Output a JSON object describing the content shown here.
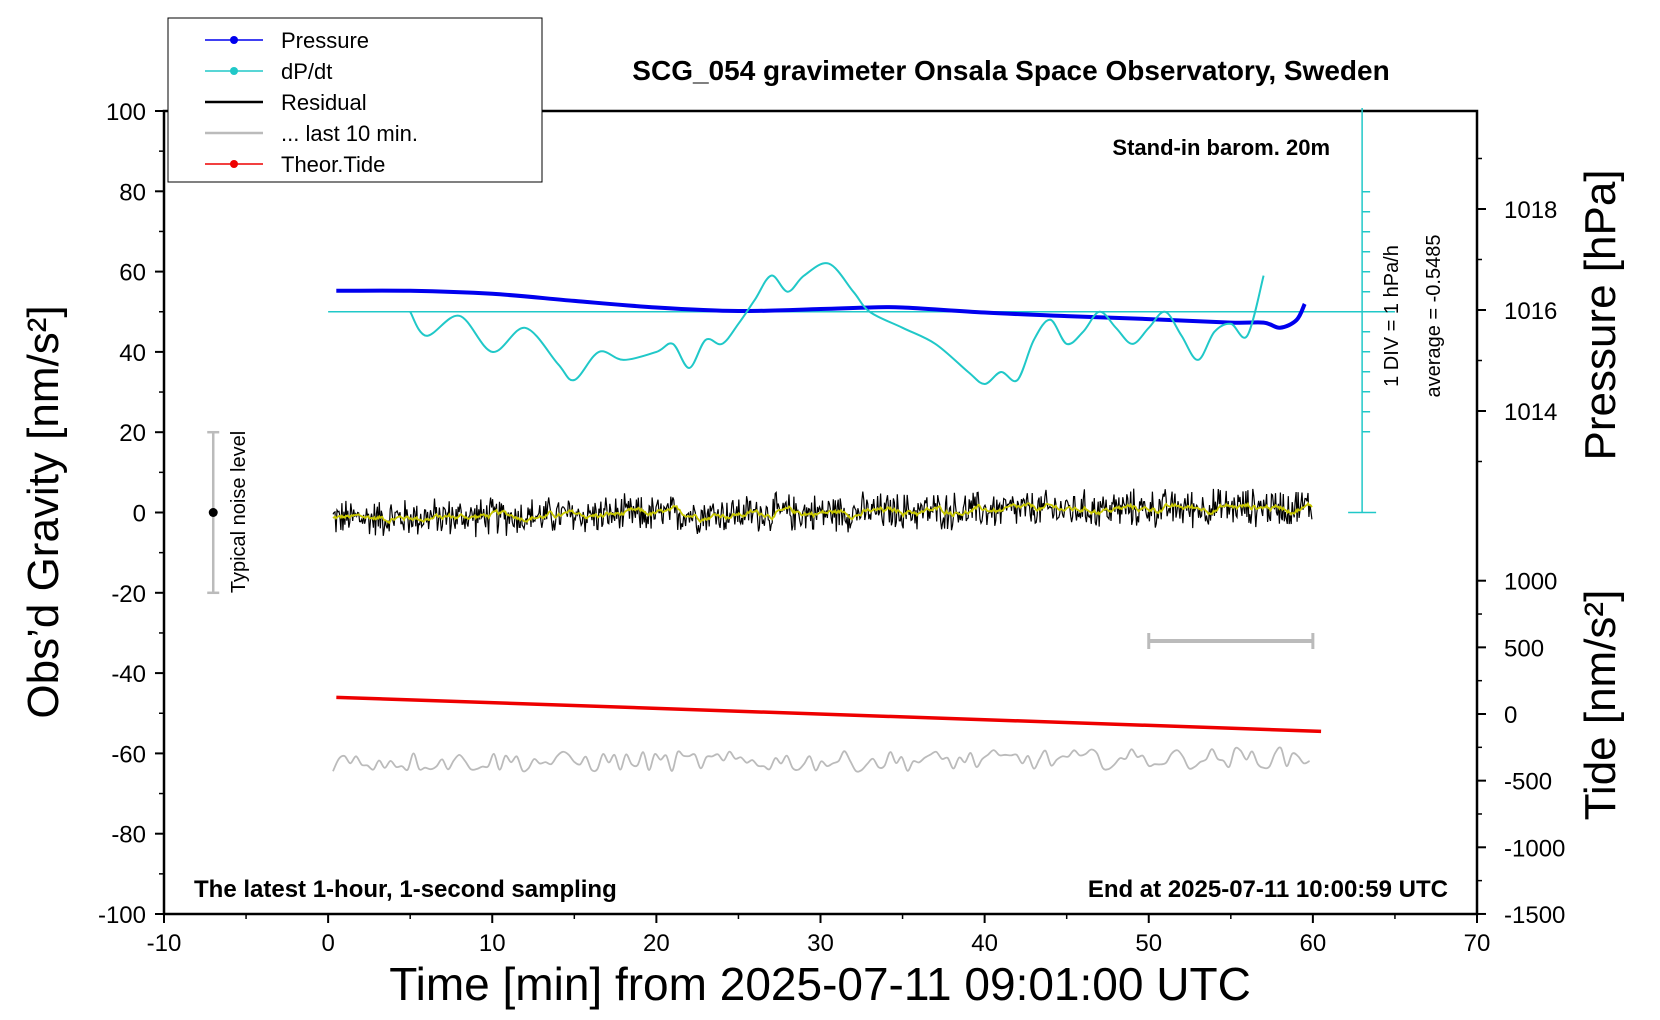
{
  "chart_data": {
    "type": "line",
    "title": "SCG_054 gravimeter Onsala Space Observatory, Sweden",
    "xlabel": "Time [min] from 2025-07-11 09:01:00 UTC",
    "ylabel_left": "Obs’d Gravity [nm/s²]",
    "ylabel_right_pressure": "Pressure [hPa]",
    "ylabel_right_tide": "Tide [nm/s²]",
    "xlim": [
      -10,
      70
    ],
    "ylim_left": [
      -100,
      100
    ],
    "xticks": [
      -10,
      0,
      10,
      20,
      30,
      40,
      50,
      60,
      70
    ],
    "xtick_labels": [
      "-10",
      "0",
      "10",
      "20",
      "30",
      "40",
      "50",
      "60",
      "70"
    ],
    "yticks_left": [
      100,
      80,
      60,
      40,
      20,
      0,
      -20,
      -40,
      -60,
      -80,
      -100
    ],
    "yticks_left_labels": [
      "100",
      "80",
      "60",
      "40",
      "20",
      "0",
      "-20",
      "-40",
      "-60",
      "-80",
      "-100"
    ],
    "pressure_ticks": [
      1018,
      1016,
      1014
    ],
    "pressure_tick_labels": [
      "1018",
      "1016",
      "1014"
    ],
    "tide_ticks": [
      1000,
      500,
      0,
      -500,
      -1000,
      -1500
    ],
    "tide_tick_labels": [
      "1000",
      "500",
      "0",
      "-500",
      "-1000",
      "-1500"
    ],
    "grid": false,
    "legend_position": "top-left",
    "legend": [
      {
        "label": "Pressure",
        "color": "#0000ee",
        "marker": true
      },
      {
        "label": "dP/dt",
        "color": "#20c8c8",
        "marker": true
      },
      {
        "label": "Residual",
        "color": "#000000",
        "marker": false
      },
      {
        "label": "... last 10 min.",
        "color": "#bbbbbb",
        "marker": false
      },
      {
        "label": "Theor.Tide",
        "color": "#ee0000",
        "marker": true
      }
    ],
    "annotations": {
      "barometer": "Stand-in barom. 20m",
      "div_scale": "1 DIV = 1 hPa/h",
      "average": "average = -0.5485",
      "noise": "Typical noise level",
      "latest": "The latest 1-hour, 1-second sampling",
      "end_time": "End at 2025-07-11 10:00:59 UTC"
    },
    "series": [
      {
        "name": "Pressure",
        "unit": "hPa",
        "color": "#0000ee",
        "x": [
          0.5,
          5,
          10,
          15,
          20,
          25,
          30,
          33,
          35,
          40,
          45,
          50,
          55,
          57,
          58,
          59,
          59.5
        ],
        "values": [
          1016.38,
          1016.38,
          1016.32,
          1016.18,
          1016.05,
          1015.98,
          1016.02,
          1016.05,
          1016.05,
          1015.95,
          1015.88,
          1015.82,
          1015.75,
          1015.75,
          1015.65,
          1015.8,
          1016.12
        ]
      },
      {
        "name": "dP/dt",
        "unit": "gravity-axis scale",
        "color": "#20c8c8",
        "x": [
          5,
          6,
          8,
          10,
          12,
          14,
          15,
          16.5,
          18,
          20,
          21,
          22,
          23,
          24,
          25,
          26,
          27,
          28,
          29,
          30.5,
          32,
          33,
          35,
          37,
          39,
          40,
          41,
          42,
          43,
          44,
          45,
          46,
          47,
          48,
          49,
          50,
          51,
          52,
          53,
          54,
          55,
          56,
          57
        ],
        "values": [
          50,
          44,
          49,
          40,
          46,
          37,
          33,
          40,
          38,
          40,
          42,
          36,
          43,
          42,
          47,
          53,
          59,
          55,
          59,
          62,
          55,
          50,
          46,
          42,
          35,
          32,
          35,
          33,
          43,
          48,
          42,
          45,
          50,
          46,
          42,
          46,
          50,
          44,
          38,
          45,
          47,
          44,
          59
        ]
      },
      {
        "name": "Residual",
        "unit": "nm/s²",
        "color": "#000000",
        "x": [
          0,
          10,
          20,
          30,
          40,
          50,
          60
        ],
        "values": [
          -1.5,
          -1,
          -0.5,
          0,
          0.5,
          1,
          1.5
        ],
        "noise_amplitude": 4
      },
      {
        "name": "... last 10 min.",
        "unit": "nm/s² (offset copy)",
        "color": "#bbbbbb",
        "x": [
          0,
          30,
          60
        ],
        "values": [
          -62,
          -62,
          -61
        ],
        "span": [
          50,
          60
        ],
        "noise_amplitude": 2.5
      },
      {
        "name": "Theor.Tide",
        "unit": "nm/s²",
        "color": "#ee0000",
        "x": [
          0.5,
          60.5
        ],
        "values": [
          125,
          -130
        ]
      }
    ],
    "noise_bar": {
      "x": -7,
      "y": 0,
      "low": -20,
      "high": 20
    }
  }
}
